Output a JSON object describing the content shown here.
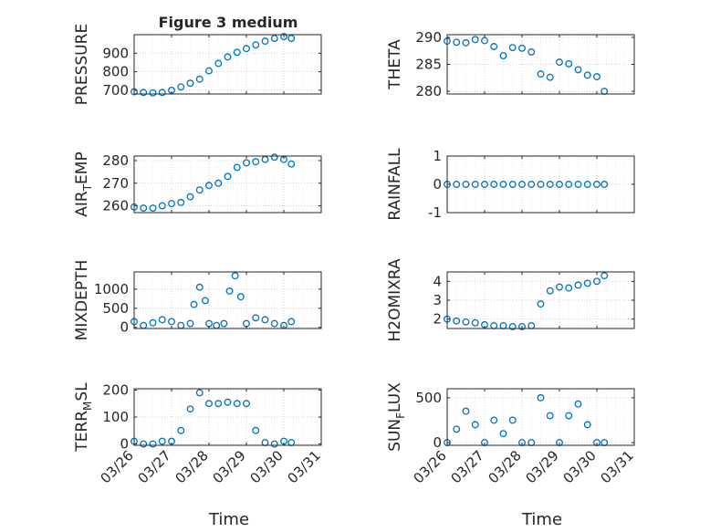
{
  "figure": {
    "title": "Figure 3 medium",
    "xlabel": "Time",
    "date_ticks": [
      "03/26",
      "03/27",
      "03/28",
      "03/29",
      "03/30",
      "03/31"
    ]
  },
  "colors": {
    "marker": "#0072BD",
    "axis": "#262626",
    "grid": "#c8c8c8",
    "background": "#ffffff"
  },
  "chart_data": [
    {
      "type": "scatter",
      "ylabel": "PRESSURE",
      "ylim": [
        680,
        1000
      ],
      "yticks": [
        700,
        800,
        900
      ],
      "xlim": [
        "03/26",
        "03/31"
      ],
      "grid": true,
      "x": [
        0,
        0.25,
        0.5,
        0.75,
        1.0,
        1.25,
        1.5,
        1.75,
        2.0,
        2.25,
        2.5,
        2.75,
        3.0,
        3.25,
        3.5,
        3.75,
        4.0,
        4.2
      ],
      "y": [
        692,
        688,
        686,
        688,
        700,
        718,
        738,
        760,
        805,
        845,
        880,
        905,
        925,
        945,
        965,
        980,
        990,
        980
      ]
    },
    {
      "type": "scatter",
      "ylabel": "THETA",
      "ylim": [
        279.5,
        290.5
      ],
      "yticks": [
        280,
        285,
        290
      ],
      "xlim": [
        "03/26",
        "03/31"
      ],
      "grid": true,
      "x": [
        0,
        0.25,
        0.5,
        0.75,
        1.0,
        1.25,
        1.5,
        1.75,
        2.0,
        2.25,
        2.5,
        2.75,
        3.0,
        3.25,
        3.5,
        3.75,
        4.0,
        4.2
      ],
      "y": [
        289.3,
        289.1,
        289.0,
        289.6,
        289.4,
        288.3,
        286.6,
        288.1,
        288.0,
        287.3,
        283.2,
        282.6,
        285.4,
        285.1,
        284.0,
        283.0,
        282.7,
        280.0
      ]
    },
    {
      "type": "scatter",
      "ylabel": "AIR_TEMP",
      "ylim": [
        257,
        282
      ],
      "yticks": [
        260,
        270,
        280
      ],
      "xlim": [
        "03/26",
        "03/31"
      ],
      "grid": true,
      "x": [
        0,
        0.25,
        0.5,
        0.75,
        1.0,
        1.25,
        1.5,
        1.75,
        2.0,
        2.25,
        2.5,
        2.75,
        3.0,
        3.25,
        3.5,
        3.75,
        4.0,
        4.2
      ],
      "y": [
        259.5,
        259.0,
        259.0,
        260.0,
        261.0,
        261.5,
        264.0,
        267.0,
        269.0,
        270.0,
        273.0,
        277.0,
        279.0,
        279.5,
        280.5,
        281.5,
        280.5,
        278.5
      ]
    },
    {
      "type": "scatter",
      "ylabel": "RAINFALL",
      "ylim": [
        -1,
        1
      ],
      "yticks": [
        -1,
        0,
        1
      ],
      "xlim": [
        "03/26",
        "03/31"
      ],
      "grid": true,
      "x": [
        0,
        0.25,
        0.5,
        0.75,
        1.0,
        1.25,
        1.5,
        1.75,
        2.0,
        2.25,
        2.5,
        2.75,
        3.0,
        3.25,
        3.5,
        3.75,
        4.0,
        4.2
      ],
      "y": [
        0,
        0,
        0,
        0,
        0,
        0,
        0,
        0,
        0,
        0,
        0,
        0,
        0,
        0,
        0,
        0,
        0,
        0
      ]
    },
    {
      "type": "scatter",
      "ylabel": "MIXDEPTH",
      "ylim": [
        -30,
        1450
      ],
      "yticks": [
        0,
        500,
        1000
      ],
      "xlim": [
        "03/26",
        "03/31"
      ],
      "grid": true,
      "x": [
        0,
        0.25,
        0.5,
        0.75,
        1.0,
        1.25,
        1.5,
        1.6,
        1.75,
        1.9,
        2.0,
        2.2,
        2.4,
        2.55,
        2.7,
        2.85,
        3.0,
        3.25,
        3.5,
        3.75,
        4.0,
        4.2
      ],
      "y": [
        150,
        50,
        120,
        200,
        150,
        50,
        100,
        600,
        1050,
        700,
        100,
        50,
        100,
        950,
        1350,
        800,
        100,
        250,
        200,
        100,
        50,
        150
      ]
    },
    {
      "type": "scatter",
      "ylabel": "H2OMIXRA",
      "ylim": [
        1.5,
        4.5
      ],
      "yticks": [
        2,
        3,
        4
      ],
      "xlim": [
        "03/26",
        "03/31"
      ],
      "grid": true,
      "x": [
        0,
        0.25,
        0.5,
        0.75,
        1.0,
        1.25,
        1.5,
        1.75,
        2.0,
        2.25,
        2.5,
        2.75,
        3.0,
        3.25,
        3.5,
        3.75,
        4.0,
        4.2
      ],
      "y": [
        2.0,
        1.9,
        1.85,
        1.8,
        1.7,
        1.65,
        1.65,
        1.6,
        1.6,
        1.65,
        2.8,
        3.5,
        3.7,
        3.65,
        3.8,
        3.9,
        4.0,
        4.3
      ]
    },
    {
      "type": "scatter",
      "ylabel": "TERR_MSL",
      "ylim": [
        -5,
        205
      ],
      "yticks": [
        0,
        100,
        200
      ],
      "xlim": [
        "03/26",
        "03/31"
      ],
      "grid": true,
      "x": [
        0,
        0.25,
        0.5,
        0.75,
        1.0,
        1.25,
        1.5,
        1.75,
        2.0,
        2.25,
        2.5,
        2.75,
        3.0,
        3.25,
        3.5,
        3.75,
        4.0,
        4.2
      ],
      "y": [
        10,
        0,
        0,
        10,
        10,
        50,
        130,
        190,
        150,
        150,
        155,
        150,
        150,
        50,
        5,
        0,
        10,
        5
      ]
    },
    {
      "type": "scatter",
      "ylabel": "SUN_FLUX",
      "ylim": [
        -30,
        600
      ],
      "yticks": [
        0,
        500
      ],
      "xlim": [
        "03/26",
        "03/31"
      ],
      "grid": true,
      "x": [
        0,
        0.25,
        0.5,
        0.75,
        1.0,
        1.25,
        1.5,
        1.75,
        2.0,
        2.25,
        2.5,
        2.75,
        3.0,
        3.25,
        3.5,
        3.75,
        4.0,
        4.2
      ],
      "y": [
        0,
        150,
        350,
        200,
        0,
        250,
        100,
        250,
        0,
        0,
        500,
        300,
        0,
        300,
        430,
        200,
        0,
        0
      ]
    }
  ]
}
